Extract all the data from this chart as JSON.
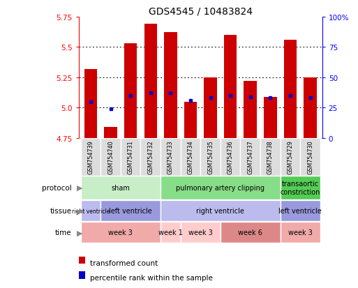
{
  "title": "GDS4545 / 10483824",
  "samples": [
    "GSM754739",
    "GSM754740",
    "GSM754731",
    "GSM754732",
    "GSM754733",
    "GSM754734",
    "GSM754735",
    "GSM754736",
    "GSM754737",
    "GSM754738",
    "GSM754729",
    "GSM754730"
  ],
  "bar_tops": [
    5.32,
    4.84,
    5.53,
    5.69,
    5.62,
    5.05,
    5.25,
    5.6,
    5.22,
    5.09,
    5.56,
    5.25
  ],
  "bar_bottoms": [
    4.75,
    4.75,
    4.75,
    4.75,
    4.75,
    4.75,
    4.75,
    4.75,
    4.75,
    4.75,
    4.75,
    4.75
  ],
  "percentile_values": [
    5.05,
    4.99,
    5.1,
    5.12,
    5.12,
    5.06,
    5.08,
    5.1,
    5.09,
    5.08,
    5.1,
    5.08
  ],
  "bar_color": "#cc0000",
  "percentile_color": "#0000cc",
  "ylim": [
    4.75,
    5.75
  ],
  "yticks": [
    4.75,
    5.0,
    5.25,
    5.5,
    5.75
  ],
  "right_yticks": [
    0,
    25,
    50,
    75,
    100
  ],
  "right_ytick_labels": [
    "0",
    "25",
    "50",
    "75",
    "100%"
  ],
  "grid_dotted_values": [
    5.0,
    5.25,
    5.5
  ],
  "protocol_groups": [
    {
      "label": "sham",
      "start": 0,
      "end": 4,
      "color": "#c8eec8"
    },
    {
      "label": "pulmonary artery clipping",
      "start": 4,
      "end": 10,
      "color": "#88dd88"
    },
    {
      "label": "transaortic\nconstriction",
      "start": 10,
      "end": 12,
      "color": "#55cc55"
    }
  ],
  "tissue_groups": [
    {
      "label": "right ventricle",
      "start": 0,
      "end": 1,
      "color": "#bbbbee"
    },
    {
      "label": "left ventricle",
      "start": 1,
      "end": 4,
      "color": "#9999dd"
    },
    {
      "label": "right ventricle",
      "start": 4,
      "end": 10,
      "color": "#bbbbee"
    },
    {
      "label": "left ventricle",
      "start": 10,
      "end": 12,
      "color": "#9999dd"
    }
  ],
  "time_groups": [
    {
      "label": "week 3",
      "start": 0,
      "end": 4,
      "color": "#f0aaaa"
    },
    {
      "label": "week 1",
      "start": 4,
      "end": 5,
      "color": "#ffcccc"
    },
    {
      "label": "week 3",
      "start": 5,
      "end": 7,
      "color": "#ffcccc"
    },
    {
      "label": "week 6",
      "start": 7,
      "end": 10,
      "color": "#dd8888"
    },
    {
      "label": "week 3",
      "start": 10,
      "end": 12,
      "color": "#f0aaaa"
    }
  ],
  "row_labels": [
    "protocol",
    "tissue",
    "time"
  ],
  "legend_items": [
    {
      "color": "#cc0000",
      "label": "transformed count"
    },
    {
      "color": "#0000cc",
      "label": "percentile rank within the sample"
    }
  ],
  "xtick_bg_color": "#dddddd",
  "border_color": "#aaaaaa"
}
